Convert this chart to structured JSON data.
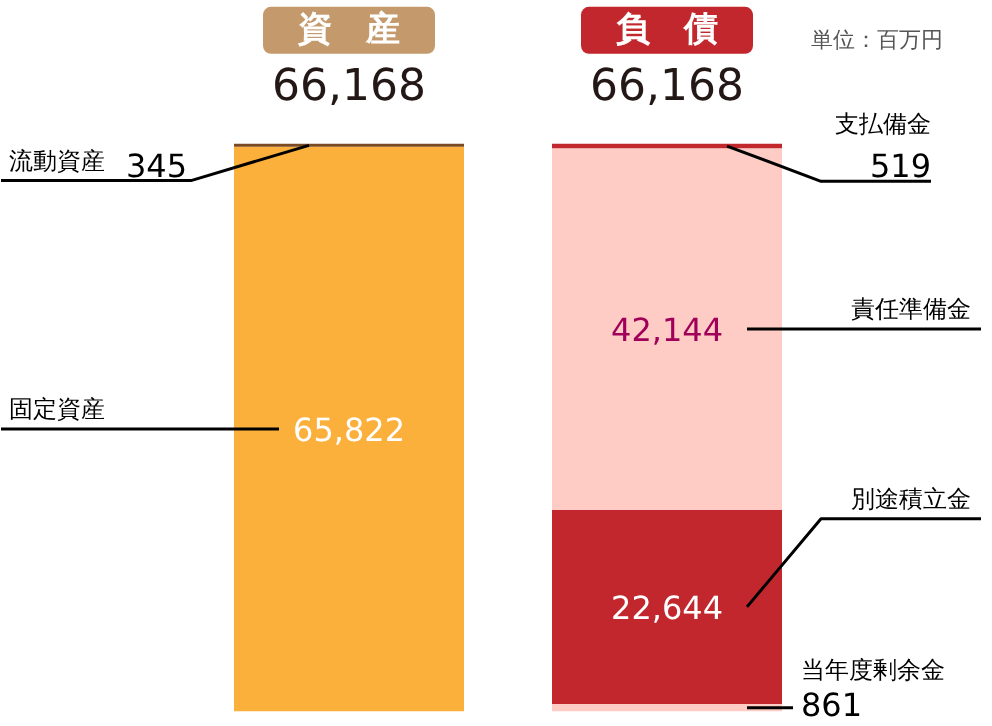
{
  "chart_data": {
    "type": "bar",
    "stacked": true,
    "categories": [
      "資　産",
      "負　債"
    ],
    "totals": [
      "66,168",
      "66,168"
    ],
    "annotations": [
      "単位：百万円"
    ],
    "series": [
      {
        "name": "固定資産",
        "color": "#fbb03b",
        "values": [
          65822,
          null
        ],
        "value_labels": [
          "65,822",
          null
        ]
      },
      {
        "name": "流動資産",
        "color": "#7b4a22",
        "values": [
          345,
          null
        ],
        "value_labels": [
          "345",
          null
        ]
      },
      {
        "name": "当年度剰余金",
        "color": "#ffcbc5",
        "values": [
          null,
          861
        ],
        "value_labels": [
          null,
          "861"
        ]
      },
      {
        "name": "別途積立金",
        "color": "#c1272d",
        "values": [
          null,
          22644
        ],
        "value_labels": [
          null,
          "22,644"
        ]
      },
      {
        "name": "責任準備金",
        "color": "#ffcbc5",
        "values": [
          null,
          42144
        ],
        "value_labels": [
          null,
          "42,144"
        ]
      },
      {
        "name": "支払備金",
        "color": "#c1272d",
        "values": [
          null,
          519
        ],
        "value_labels": [
          null,
          "519"
        ]
      }
    ]
  }
}
